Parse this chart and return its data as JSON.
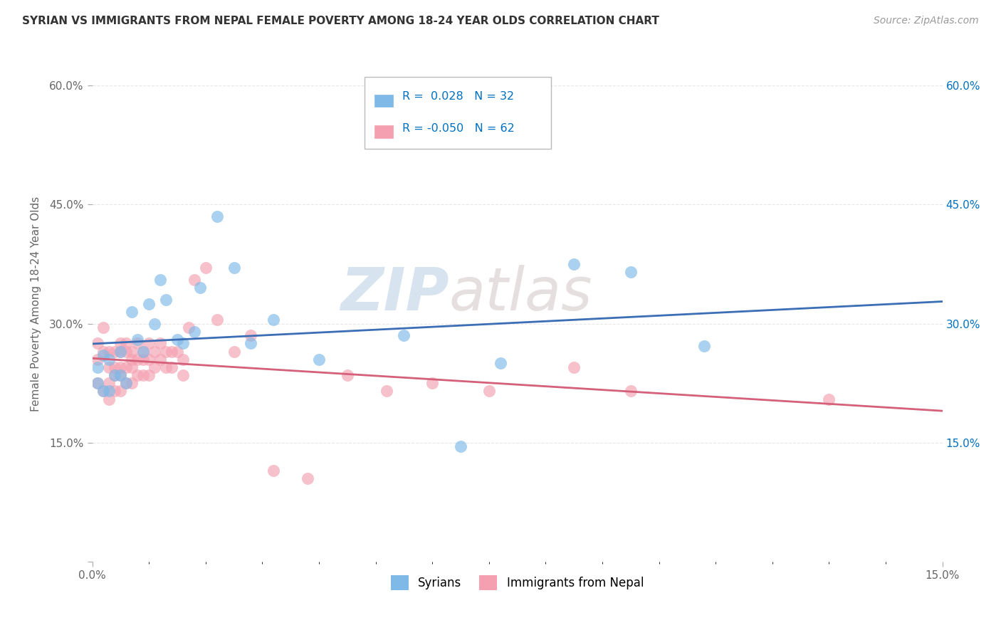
{
  "title": "SYRIAN VS IMMIGRANTS FROM NEPAL FEMALE POVERTY AMONG 18-24 YEAR OLDS CORRELATION CHART",
  "source": "Source: ZipAtlas.com",
  "ylabel": "Female Poverty Among 18-24 Year Olds",
  "xmin": 0.0,
  "xmax": 0.15,
  "ymin": 0.0,
  "ymax": 0.65,
  "xticks": [
    0.0,
    0.15
  ],
  "xtick_labels": [
    "0.0%",
    "15.0%"
  ],
  "yticks": [
    0.0,
    0.15,
    0.3,
    0.45,
    0.6
  ],
  "ytick_labels_left": [
    "",
    "15.0%",
    "30.0%",
    "45.0%",
    "60.0%"
  ],
  "ytick_labels_right": [
    "",
    "15.0%",
    "30.0%",
    "45.0%",
    "60.0%"
  ],
  "syrian_color": "#7EB9E8",
  "nepal_color": "#F4A0B0",
  "syrian_R": 0.028,
  "syrian_N": 32,
  "nepal_R": -0.05,
  "nepal_N": 62,
  "syrian_line_color": "#3B6EB5",
  "nepal_line_color": "#D4607A",
  "legend_R_color": "#0070C0",
  "background_color": "#FFFFFF",
  "grid_color": "#DDDDDD",
  "watermark_zip": "ZIP",
  "watermark_atlas": "atlas",
  "syrian_x": [
    0.001,
    0.001,
    0.002,
    0.002,
    0.003,
    0.003,
    0.004,
    0.005,
    0.005,
    0.006,
    0.007,
    0.008,
    0.009,
    0.01,
    0.011,
    0.012,
    0.013,
    0.015,
    0.016,
    0.018,
    0.019,
    0.022,
    0.025,
    0.028,
    0.032,
    0.04,
    0.055,
    0.065,
    0.072,
    0.085,
    0.095,
    0.108
  ],
  "syrian_y": [
    0.245,
    0.225,
    0.26,
    0.215,
    0.255,
    0.215,
    0.235,
    0.265,
    0.235,
    0.225,
    0.315,
    0.28,
    0.265,
    0.325,
    0.3,
    0.355,
    0.33,
    0.28,
    0.275,
    0.29,
    0.345,
    0.435,
    0.37,
    0.275,
    0.305,
    0.255,
    0.285,
    0.145,
    0.25,
    0.375,
    0.365,
    0.272
  ],
  "nepal_x": [
    0.001,
    0.001,
    0.001,
    0.002,
    0.002,
    0.002,
    0.003,
    0.003,
    0.003,
    0.003,
    0.004,
    0.004,
    0.004,
    0.004,
    0.005,
    0.005,
    0.005,
    0.005,
    0.005,
    0.006,
    0.006,
    0.006,
    0.006,
    0.007,
    0.007,
    0.007,
    0.007,
    0.008,
    0.008,
    0.008,
    0.009,
    0.009,
    0.009,
    0.01,
    0.01,
    0.01,
    0.011,
    0.011,
    0.012,
    0.012,
    0.013,
    0.013,
    0.014,
    0.014,
    0.015,
    0.016,
    0.016,
    0.017,
    0.018,
    0.02,
    0.022,
    0.025,
    0.028,
    0.032,
    0.038,
    0.045,
    0.052,
    0.06,
    0.07,
    0.085,
    0.095,
    0.13
  ],
  "nepal_y": [
    0.275,
    0.255,
    0.225,
    0.295,
    0.265,
    0.215,
    0.265,
    0.245,
    0.225,
    0.205,
    0.265,
    0.245,
    0.235,
    0.215,
    0.275,
    0.265,
    0.245,
    0.235,
    0.215,
    0.275,
    0.265,
    0.245,
    0.225,
    0.265,
    0.255,
    0.245,
    0.225,
    0.275,
    0.255,
    0.235,
    0.265,
    0.255,
    0.235,
    0.275,
    0.255,
    0.235,
    0.265,
    0.245,
    0.275,
    0.255,
    0.265,
    0.245,
    0.265,
    0.245,
    0.265,
    0.255,
    0.235,
    0.295,
    0.355,
    0.37,
    0.305,
    0.265,
    0.285,
    0.115,
    0.105,
    0.235,
    0.215,
    0.225,
    0.215,
    0.245,
    0.215,
    0.205
  ]
}
